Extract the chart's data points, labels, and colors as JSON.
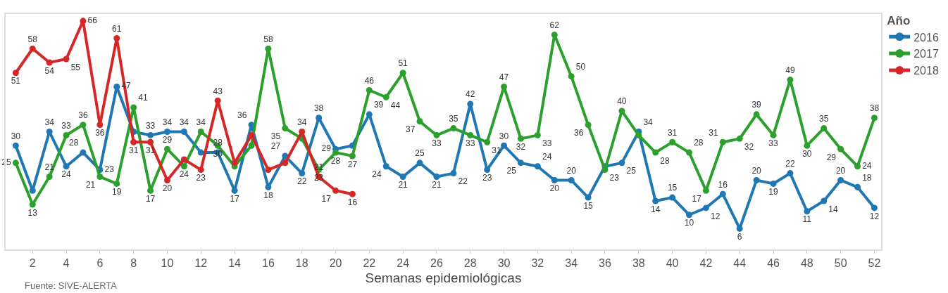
{
  "chart_data": {
    "type": "line",
    "xlabel": "Semanas epidemiológicas",
    "legend_title": "Año",
    "annotations": [
      "Fuente: SIVE-ALERTA"
    ],
    "x": [
      1,
      2,
      3,
      4,
      5,
      6,
      7,
      8,
      9,
      10,
      11,
      12,
      13,
      14,
      15,
      16,
      17,
      18,
      19,
      20,
      21,
      22,
      23,
      24,
      25,
      26,
      27,
      28,
      29,
      30,
      31,
      32,
      33,
      34,
      35,
      36,
      37,
      38,
      39,
      40,
      41,
      42,
      43,
      44,
      45,
      46,
      47,
      48,
      49,
      50,
      51,
      52
    ],
    "xlim": [
      0.4,
      52.4
    ],
    "xticks": [
      2,
      4,
      6,
      8,
      10,
      12,
      14,
      16,
      18,
      20,
      22,
      24,
      26,
      28,
      30,
      32,
      34,
      36,
      38,
      40,
      42,
      44,
      46,
      48,
      50,
      52
    ],
    "ylim": [
      0,
      68
    ],
    "tick_labels": "x",
    "marker": "circle",
    "line_style": "solid",
    "legend": "top right",
    "series": [
      {
        "name": "2016",
        "color": "#1f77b4",
        "values": [
          30,
          17,
          34,
          24,
          28,
          23,
          47,
          34,
          33,
          34,
          34,
          28,
          28,
          17,
          36,
          18,
          27,
          22,
          38,
          29,
          30,
          39,
          24,
          21,
          25,
          21,
          22,
          42,
          23,
          30,
          25,
          24,
          20,
          20,
          15,
          24,
          25,
          34,
          14,
          15,
          10,
          12,
          16,
          6,
          20,
          19,
          22,
          11,
          14,
          20,
          18,
          12
        ],
        "value_labels": [
          "30",
          null,
          "34",
          "24",
          "28",
          "23",
          "47",
          null,
          "33",
          "34",
          "34",
          null,
          "28",
          "17",
          "36",
          "18",
          "27",
          "22",
          "38",
          "29",
          null,
          "39",
          "24",
          "21",
          "25",
          "21",
          "22",
          "42",
          "23",
          "30",
          "25",
          "24",
          "20",
          "20",
          "15",
          null,
          "25",
          "34",
          "14",
          "15",
          "10",
          "12",
          "16",
          "6",
          "20",
          "19",
          "22",
          "11",
          "14",
          "20",
          "18",
          "12"
        ]
      },
      {
        "name": "2017",
        "color": "#2ca02c",
        "values": [
          25,
          13,
          21,
          33,
          36,
          21,
          19,
          41,
          17,
          29,
          24,
          34,
          30,
          24,
          30,
          58,
          35,
          32,
          23,
          28,
          27,
          46,
          44,
          51,
          37,
          33,
          35,
          33,
          31,
          47,
          32,
          33,
          62,
          50,
          36,
          23,
          40,
          33,
          28,
          31,
          28,
          17,
          31,
          32,
          39,
          33,
          49,
          30,
          35,
          29,
          24,
          38
        ],
        "value_labels": [
          "25",
          "13",
          "21",
          "33",
          "36",
          "21",
          "19",
          "41",
          "17",
          "29",
          "24",
          "34",
          "30",
          null,
          null,
          "58",
          "35",
          null,
          "23",
          "28",
          "27",
          "46",
          "44",
          "51",
          "37",
          "33",
          "35",
          "33",
          "31",
          "47",
          "32",
          "33",
          "62",
          "50",
          "36",
          "23",
          "40",
          null,
          "28",
          "31",
          "28",
          "17",
          "31",
          "32",
          "39",
          "33",
          "49",
          "30",
          "35",
          "29",
          "24",
          "38"
        ]
      },
      {
        "name": "2018",
        "color": "#d62728",
        "x": [
          1,
          2,
          3,
          4,
          5,
          6,
          7,
          8,
          9,
          10,
          11,
          12,
          13,
          14,
          15,
          16,
          17,
          18,
          19,
          20,
          21
        ],
        "values": [
          51,
          58,
          54,
          55,
          66,
          36,
          61,
          31,
          31,
          20,
          26,
          23,
          43,
          25,
          33,
          23,
          25,
          34,
          21,
          17,
          16
        ],
        "value_labels": [
          "51",
          "58",
          "54",
          "55",
          "66",
          "36",
          "61",
          "31",
          "31",
          "20",
          null,
          "23",
          "43",
          null,
          null,
          null,
          null,
          "34",
          "21",
          "17",
          "16"
        ]
      }
    ]
  }
}
